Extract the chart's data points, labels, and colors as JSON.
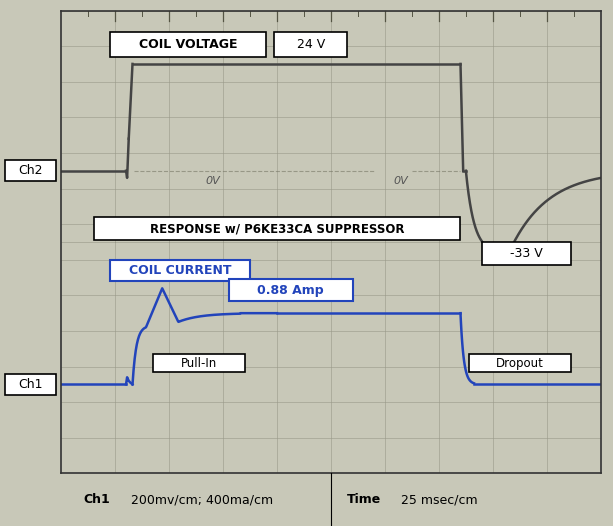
{
  "background_color": "#c8c8b8",
  "grid_color": "#999988",
  "plot_bg_color": "#c8c8b8",
  "border_color": "#333333",
  "voltage_color": "#444444",
  "current_color": "#2244bb",
  "bottom_bg": "#f0f0f0",
  "ch2_label": "Ch2",
  "ch1_label": "Ch1",
  "voltage_label": "COIL VOLTAGE",
  "current_label": "COIL CURRENT",
  "v24_label": "24 V",
  "v33_label": "-33 V",
  "amp_label": "0.88 Amp",
  "suppressor_label": "RESPONSE w/ P6KE33CA SUPPRESSOR",
  "pullin_label": "Pull-In",
  "dropout_label": "Dropout",
  "bottom_ch1_bold": "Ch1",
  "bottom_ch1_normal": " 200mv/cm; 400ma/cm",
  "bottom_time_bold": "Time",
  "bottom_time_normal": " 25 msec/cm",
  "xlim": [
    0,
    10
  ],
  "ylim": [
    -1,
    12
  ],
  "v_zero_y": 7.5,
  "v_24_y": 10.5,
  "v_neg33_y": 5.2,
  "i_zero_y": 1.5,
  "i_steady_y": 3.5,
  "i_peak_y": 4.2,
  "t_rise": 1.3,
  "t_fall": 7.5,
  "grid_nx": 10,
  "grid_ny": 13
}
